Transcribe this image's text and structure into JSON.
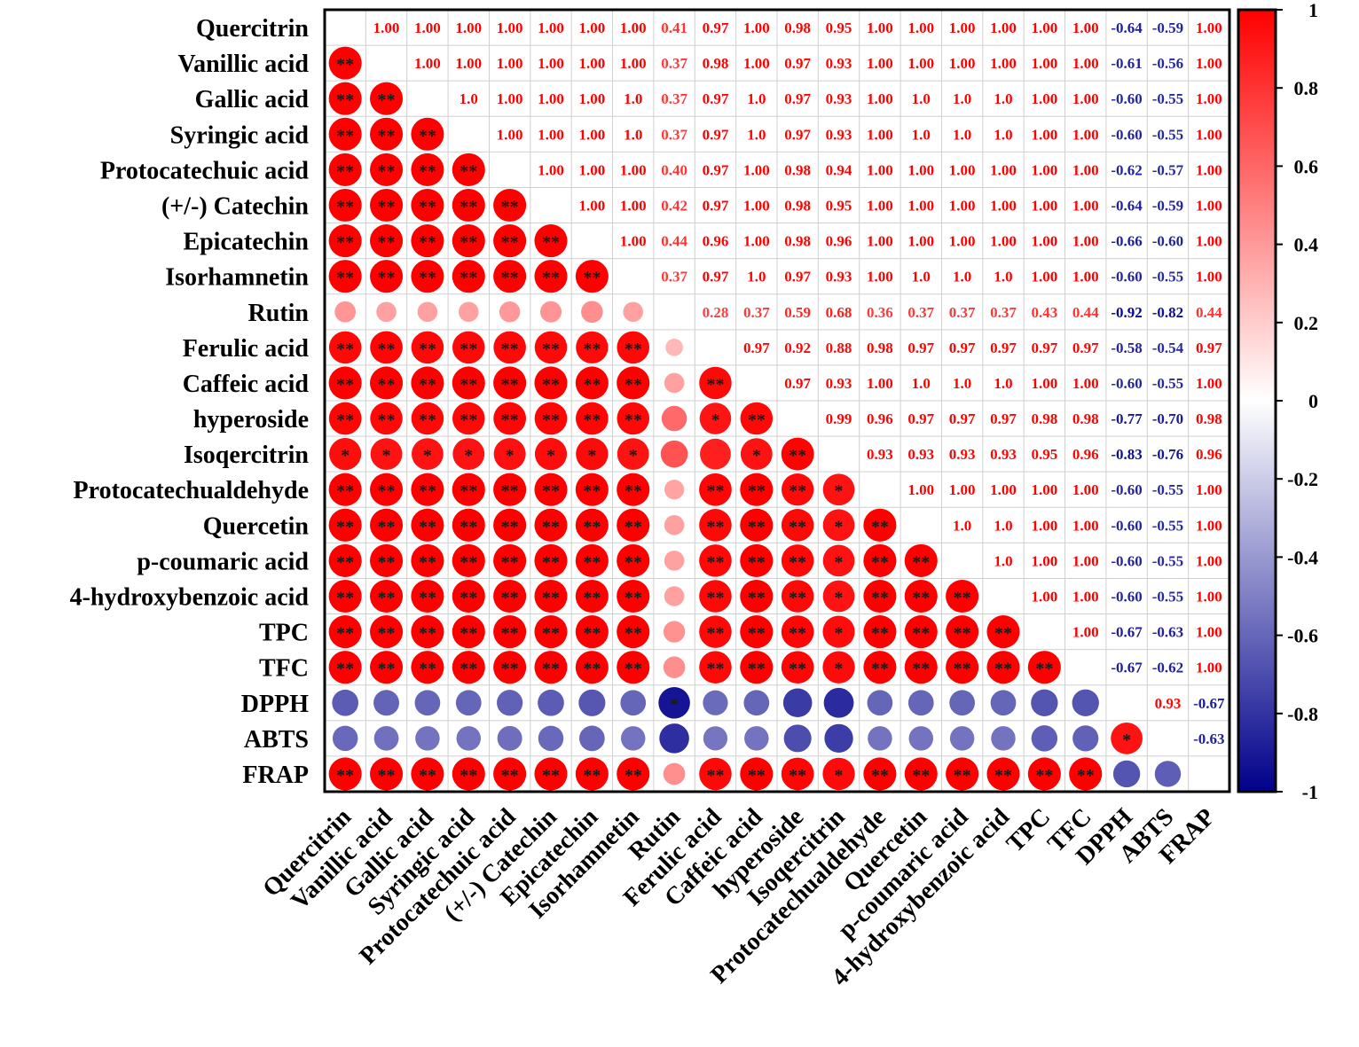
{
  "chart_data": {
    "type": "heatmap",
    "title": "",
    "variables": [
      "Quercitrin",
      "Vanillic acid",
      "Gallic acid",
      "Syringic acid",
      "Protocatechuic acid",
      "(+/-) Catechin",
      "Epicatechin",
      "Isorhamnetin",
      "Rutin",
      "Ferulic acid",
      "Caffeic acid",
      "hyperoside",
      "Isoqercitrin",
      "Protocatechualdehyde",
      "Quercetin",
      "p-coumaric acid",
      "4-hydroxybenzoic acid",
      "TPC",
      "TFC",
      "DPPH",
      "ABTS",
      "FRAP"
    ],
    "value_labels": [
      [
        "",
        "1.00",
        "1.00",
        "1.00",
        "1.00",
        "1.00",
        "1.00",
        "1.00",
        "0.41",
        "0.97",
        "1.00",
        "0.98",
        "0.95",
        "1.00",
        "1.00",
        "1.00",
        "1.00",
        "1.00",
        "1.00",
        "-0.64",
        "-0.59",
        "1.00"
      ],
      [
        "",
        "",
        "1.00",
        "1.00",
        "1.00",
        "1.00",
        "1.00",
        "1.00",
        "0.37",
        "0.98",
        "1.00",
        "0.97",
        "0.93",
        "1.00",
        "1.00",
        "1.00",
        "1.00",
        "1.00",
        "1.00",
        "-0.61",
        "-0.56",
        "1.00"
      ],
      [
        "",
        "",
        "",
        "1.0",
        "1.00",
        "1.00",
        "1.00",
        "1.0",
        "0.37",
        "0.97",
        "1.0",
        "0.97",
        "0.93",
        "1.00",
        "1.0",
        "1.0",
        "1.0",
        "1.00",
        "1.00",
        "-0.60",
        "-0.55",
        "1.00"
      ],
      [
        "",
        "",
        "",
        "",
        "1.00",
        "1.00",
        "1.00",
        "1.0",
        "0.37",
        "0.97",
        "1.0",
        "0.97",
        "0.93",
        "1.00",
        "1.0",
        "1.0",
        "1.0",
        "1.00",
        "1.00",
        "-0.60",
        "-0.55",
        "1.00"
      ],
      [
        "",
        "",
        "",
        "",
        "",
        "1.00",
        "1.00",
        "1.00",
        "0.40",
        "0.97",
        "1.00",
        "0.98",
        "0.94",
        "1.00",
        "1.00",
        "1.00",
        "1.00",
        "1.00",
        "1.00",
        "-0.62",
        "-0.57",
        "1.00"
      ],
      [
        "",
        "",
        "",
        "",
        "",
        "",
        "1.00",
        "1.00",
        "0.42",
        "0.97",
        "1.00",
        "0.98",
        "0.95",
        "1.00",
        "1.00",
        "1.00",
        "1.00",
        "1.00",
        "1.00",
        "-0.64",
        "-0.59",
        "1.00"
      ],
      [
        "",
        "",
        "",
        "",
        "",
        "",
        "",
        "1.00",
        "0.44",
        "0.96",
        "1.00",
        "0.98",
        "0.96",
        "1.00",
        "1.00",
        "1.00",
        "1.00",
        "1.00",
        "1.00",
        "-0.66",
        "-0.60",
        "1.00"
      ],
      [
        "",
        "",
        "",
        "",
        "",
        "",
        "",
        "",
        "0.37",
        "0.97",
        "1.0",
        "0.97",
        "0.93",
        "1.00",
        "1.0",
        "1.0",
        "1.0",
        "1.00",
        "1.00",
        "-0.60",
        "-0.55",
        "1.00"
      ],
      [
        "",
        "",
        "",
        "",
        "",
        "",
        "",
        "",
        "",
        "0.28",
        "0.37",
        "0.59",
        "0.68",
        "0.36",
        "0.37",
        "0.37",
        "0.37",
        "0.43",
        "0.44",
        "-0.92",
        "-0.82",
        "0.44"
      ],
      [
        "",
        "",
        "",
        "",
        "",
        "",
        "",
        "",
        "",
        "",
        "0.97",
        "0.92",
        "0.88",
        "0.98",
        "0.97",
        "0.97",
        "0.97",
        "0.97",
        "0.97",
        "-0.58",
        "-0.54",
        "0.97"
      ],
      [
        "",
        "",
        "",
        "",
        "",
        "",
        "",
        "",
        "",
        "",
        "",
        "0.97",
        "0.93",
        "1.00",
        "1.0",
        "1.0",
        "1.0",
        "1.00",
        "1.00",
        "-0.60",
        "-0.55",
        "1.00"
      ],
      [
        "",
        "",
        "",
        "",
        "",
        "",
        "",
        "",
        "",
        "",
        "",
        "",
        "0.99",
        "0.96",
        "0.97",
        "0.97",
        "0.97",
        "0.98",
        "0.98",
        "-0.77",
        "-0.70",
        "0.98"
      ],
      [
        "",
        "",
        "",
        "",
        "",
        "",
        "",
        "",
        "",
        "",
        "",
        "",
        "",
        "0.93",
        "0.93",
        "0.93",
        "0.93",
        "0.95",
        "0.96",
        "-0.83",
        "-0.76",
        "0.96"
      ],
      [
        "",
        "",
        "",
        "",
        "",
        "",
        "",
        "",
        "",
        "",
        "",
        "",
        "",
        "",
        "1.00",
        "1.00",
        "1.00",
        "1.00",
        "1.00",
        "-0.60",
        "-0.55",
        "1.00"
      ],
      [
        "",
        "",
        "",
        "",
        "",
        "",
        "",
        "",
        "",
        "",
        "",
        "",
        "",
        "",
        "",
        "1.0",
        "1.0",
        "1.00",
        "1.00",
        "-0.60",
        "-0.55",
        "1.00"
      ],
      [
        "",
        "",
        "",
        "",
        "",
        "",
        "",
        "",
        "",
        "",
        "",
        "",
        "",
        "",
        "",
        "",
        "1.0",
        "1.00",
        "1.00",
        "-0.60",
        "-0.55",
        "1.00"
      ],
      [
        "",
        "",
        "",
        "",
        "",
        "",
        "",
        "",
        "",
        "",
        "",
        "",
        "",
        "",
        "",
        "",
        "",
        "1.00",
        "1.00",
        "-0.60",
        "-0.55",
        "1.00"
      ],
      [
        "",
        "",
        "",
        "",
        "",
        "",
        "",
        "",
        "",
        "",
        "",
        "",
        "",
        "",
        "",
        "",
        "",
        "",
        "1.00",
        "-0.67",
        "-0.63",
        "1.00"
      ],
      [
        "",
        "",
        "",
        "",
        "",
        "",
        "",
        "",
        "",
        "",
        "",
        "",
        "",
        "",
        "",
        "",
        "",
        "",
        "",
        "-0.67",
        "-0.62",
        "1.00"
      ],
      [
        "",
        "",
        "",
        "",
        "",
        "",
        "",
        "",
        "",
        "",
        "",
        "",
        "",
        "",
        "",
        "",
        "",
        "",
        "",
        "",
        "0.93",
        "-0.67"
      ],
      [
        "",
        "",
        "",
        "",
        "",
        "",
        "",
        "",
        "",
        "",
        "",
        "",
        "",
        "",
        "",
        "",
        "",
        "",
        "",
        "",
        "",
        "-0.63"
      ],
      [
        "",
        "",
        "",
        "",
        "",
        "",
        "",
        "",
        "",
        "",
        "",
        "",
        "",
        "",
        "",
        "",
        "",
        "",
        "",
        "",
        "",
        ""
      ]
    ],
    "significance": [
      [
        "",
        "",
        "",
        "",
        "",
        "",
        "",
        "",
        "",
        "",
        "",
        "",
        "",
        "",
        "",
        "",
        "",
        "",
        "",
        "",
        "",
        ""
      ],
      [
        "**",
        "",
        "",
        "",
        "",
        "",
        "",
        "",
        "",
        "",
        "",
        "",
        "",
        "",
        "",
        "",
        "",
        "",
        "",
        "",
        "",
        ""
      ],
      [
        "**",
        "**",
        "",
        "",
        "",
        "",
        "",
        "",
        "",
        "",
        "",
        "",
        "",
        "",
        "",
        "",
        "",
        "",
        "",
        "",
        "",
        ""
      ],
      [
        "**",
        "**",
        "**",
        "",
        "",
        "",
        "",
        "",
        "",
        "",
        "",
        "",
        "",
        "",
        "",
        "",
        "",
        "",
        "",
        "",
        "",
        ""
      ],
      [
        "**",
        "**",
        "**",
        "**",
        "",
        "",
        "",
        "",
        "",
        "",
        "",
        "",
        "",
        "",
        "",
        "",
        "",
        "",
        "",
        "",
        "",
        ""
      ],
      [
        "**",
        "**",
        "**",
        "**",
        "**",
        "",
        "",
        "",
        "",
        "",
        "",
        "",
        "",
        "",
        "",
        "",
        "",
        "",
        "",
        "",
        "",
        ""
      ],
      [
        "**",
        "**",
        "**",
        "**",
        "**",
        "**",
        "",
        "",
        "",
        "",
        "",
        "",
        "",
        "",
        "",
        "",
        "",
        "",
        "",
        "",
        "",
        ""
      ],
      [
        "**",
        "**",
        "**",
        "**",
        "**",
        "**",
        "**",
        "",
        "",
        "",
        "",
        "",
        "",
        "",
        "",
        "",
        "",
        "",
        "",
        "",
        "",
        ""
      ],
      [
        "",
        "",
        "",
        "",
        "",
        "",
        "",
        "",
        "",
        "",
        "",
        "",
        "",
        "",
        "",
        "",
        "",
        "",
        "",
        "",
        "",
        ""
      ],
      [
        "**",
        "**",
        "**",
        "**",
        "**",
        "**",
        "**",
        "**",
        "",
        "",
        "",
        "",
        "",
        "",
        "",
        "",
        "",
        "",
        "",
        "",
        "",
        ""
      ],
      [
        "**",
        "**",
        "**",
        "**",
        "**",
        "**",
        "**",
        "**",
        "",
        "**",
        "",
        "",
        "",
        "",
        "",
        "",
        "",
        "",
        "",
        "",
        "",
        ""
      ],
      [
        "**",
        "**",
        "**",
        "**",
        "**",
        "**",
        "**",
        "**",
        "",
        "*",
        "**",
        "",
        "",
        "",
        "",
        "",
        "",
        "",
        "",
        "",
        "",
        ""
      ],
      [
        "*",
        "*",
        "*",
        "*",
        "*",
        "*",
        "*",
        "*",
        "",
        "",
        "*",
        "**",
        "",
        "",
        "",
        "",
        "",
        "",
        "",
        "",
        "",
        ""
      ],
      [
        "**",
        "**",
        "**",
        "**",
        "**",
        "**",
        "**",
        "**",
        "",
        "**",
        "**",
        "**",
        "*",
        "",
        "",
        "",
        "",
        "",
        "",
        "",
        "",
        ""
      ],
      [
        "**",
        "**",
        "**",
        "**",
        "**",
        "**",
        "**",
        "**",
        "",
        "**",
        "**",
        "**",
        "*",
        "**",
        "",
        "",
        "",
        "",
        "",
        "",
        "",
        ""
      ],
      [
        "**",
        "**",
        "**",
        "**",
        "**",
        "**",
        "**",
        "**",
        "",
        "**",
        "**",
        "**",
        "*",
        "**",
        "**",
        "",
        "",
        "",
        "",
        "",
        "",
        ""
      ],
      [
        "**",
        "**",
        "**",
        "**",
        "**",
        "**",
        "**",
        "**",
        "",
        "**",
        "**",
        "**",
        "*",
        "**",
        "**",
        "**",
        "",
        "",
        "",
        "",
        "",
        ""
      ],
      [
        "**",
        "**",
        "**",
        "**",
        "**",
        "**",
        "**",
        "**",
        "",
        "**",
        "**",
        "**",
        "*",
        "**",
        "**",
        "**",
        "**",
        "",
        "",
        "",
        "",
        ""
      ],
      [
        "**",
        "**",
        "**",
        "**",
        "**",
        "**",
        "**",
        "**",
        "",
        "**",
        "**",
        "**",
        "*",
        "**",
        "**",
        "**",
        "**",
        "**",
        "",
        "",
        "",
        ""
      ],
      [
        "",
        "",
        "",
        "",
        "",
        "",
        "",
        "",
        "*",
        "",
        "",
        "",
        "",
        "",
        "",
        "",
        "",
        "",
        "",
        "",
        "",
        ""
      ],
      [
        "",
        "",
        "",
        "",
        "",
        "",
        "",
        "",
        "",
        "",
        "",
        "",
        "",
        "",
        "",
        "",
        "",
        "",
        "",
        "*",
        "",
        ""
      ],
      [
        "**",
        "**",
        "**",
        "**",
        "**",
        "**",
        "**",
        "**",
        "",
        "**",
        "**",
        "**",
        "*",
        "**",
        "**",
        "**",
        "**",
        "**",
        "**",
        "",
        "",
        ""
      ]
    ],
    "colorbar": {
      "range": [
        -1,
        1
      ],
      "ticks": [
        "1",
        "0.8",
        "0.6",
        "0.4",
        "0.2",
        "0",
        "-0.2",
        "-0.4",
        "-0.6",
        "-0.8",
        "-1"
      ],
      "colors": {
        "negative": "#00008b",
        "zero": "#ffffff",
        "positive": "#ff0000"
      }
    },
    "grid": true
  }
}
